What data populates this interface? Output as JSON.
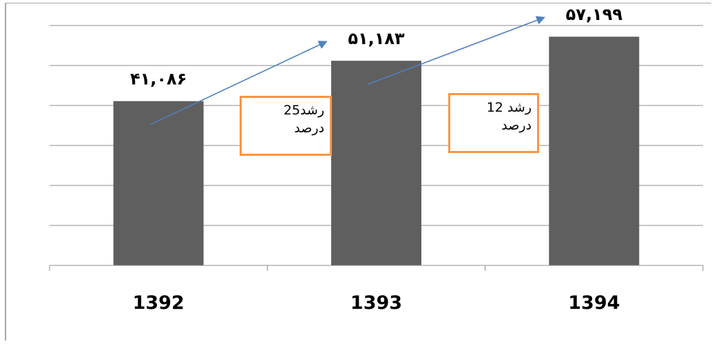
{
  "chart_data": {
    "type": "bar",
    "categories": [
      "1392",
      "1393",
      "1394"
    ],
    "values": [
      41086,
      51183,
      57199
    ],
    "data_labels": [
      "۴۱,۰۸۶",
      "۵۱,۱۸۳",
      "۵۷,۱۹۹"
    ],
    "ylim": [
      0,
      65000
    ],
    "grid": true,
    "bar_color": "#5f5f5f",
    "grid_color": "#8c8c8c",
    "arrow_color": "#4f81bd",
    "annotations": [
      {
        "from": "1392",
        "to": "1393",
        "line1": "رشد25",
        "line2": "درصد"
      },
      {
        "from": "1393",
        "to": "1394",
        "line1": "رشد 12",
        "line2": "درصد"
      }
    ]
  }
}
